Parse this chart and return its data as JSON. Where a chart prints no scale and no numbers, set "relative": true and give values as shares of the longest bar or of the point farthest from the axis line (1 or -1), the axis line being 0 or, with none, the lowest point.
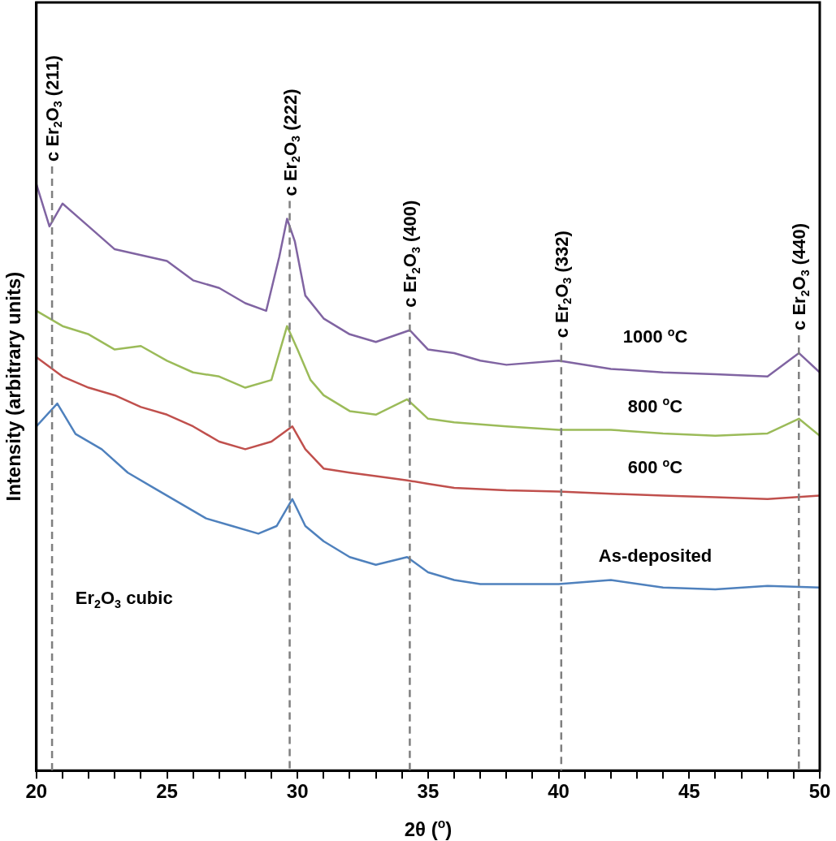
{
  "chart_data": {
    "type": "line",
    "relative": true,
    "marker": "none",
    "xlabel": "2θ ($^{o}$)",
    "ylabel": "Intensity (arbitrary units)",
    "xlim": [
      20,
      50
    ],
    "xticks": [
      20,
      {
        "value": 21,
        "label": null
      },
      {
        "value": 22,
        "label": null
      },
      {
        "value": 23,
        "label": null
      },
      {
        "value": 24,
        "label": null
      },
      25,
      {
        "value": 26,
        "label": null
      },
      {
        "value": 27,
        "label": null
      },
      {
        "value": 28,
        "label": null
      },
      {
        "value": 29,
        "label": null
      },
      30,
      {
        "value": 31,
        "label": null
      },
      {
        "value": 32,
        "label": null
      },
      {
        "value": 33,
        "label": null
      },
      {
        "value": 34,
        "label": null
      },
      35,
      {
        "value": 36,
        "label": null
      },
      {
        "value": 37,
        "label": null
      },
      {
        "value": 38,
        "label": null
      },
      {
        "value": 39,
        "label": null
      },
      40,
      {
        "value": 41,
        "label": null
      },
      {
        "value": 42,
        "label": null
      },
      {
        "value": 43,
        "label": null
      },
      {
        "value": 44,
        "label": null
      },
      45,
      {
        "value": 46,
        "label": null
      },
      {
        "value": 47,
        "label": null
      },
      {
        "value": 48,
        "label": null
      },
      {
        "value": 49,
        "label": null
      },
      50
    ],
    "series": [
      {
        "name": "1000 $^{o}$C",
        "color": "#8064a2",
        "x": [
          20,
          20.5,
          21,
          22,
          23,
          25,
          26,
          27,
          28,
          28.8,
          29.3,
          29.6,
          29.9,
          30.3,
          31,
          32,
          33,
          34.3,
          35,
          36,
          37,
          38,
          40,
          42,
          44,
          46,
          48,
          49.2,
          50
        ],
        "values": [
          1,
          0.928,
          0.967,
          0.928,
          0.889,
          0.869,
          0.836,
          0.823,
          0.797,
          0.784,
          0.876,
          0.941,
          0.902,
          0.81,
          0.771,
          0.744,
          0.731,
          0.751,
          0.718,
          0.712,
          0.699,
          0.692,
          0.699,
          0.685,
          0.679,
          0.676,
          0.672,
          0.712,
          0.679
        ]
      },
      {
        "name": "800 $^{o}$C",
        "color": "#9bbb59",
        "x": [
          20,
          21,
          22,
          23,
          24,
          25,
          26,
          27,
          28,
          29,
          29.6,
          30,
          30.5,
          31,
          32,
          33,
          34.2,
          35,
          36,
          38,
          40,
          42,
          44,
          46,
          48,
          49.2,
          50
        ],
        "values": [
          0.784,
          0.758,
          0.744,
          0.718,
          0.724,
          0.699,
          0.679,
          0.672,
          0.653,
          0.666,
          0.758,
          0.718,
          0.666,
          0.64,
          0.613,
          0.607,
          0.633,
          0.6,
          0.594,
          0.587,
          0.581,
          0.581,
          0.575,
          0.571,
          0.575,
          0.6,
          0.571
        ]
      },
      {
        "name": "600 $^{o}$C",
        "color": "#c0504d",
        "x": [
          20,
          21,
          22,
          23,
          24,
          25,
          26,
          27,
          28,
          29,
          29.8,
          30.3,
          31,
          32,
          33,
          34.2,
          35,
          36,
          38,
          40,
          42,
          44,
          46,
          48,
          50
        ],
        "values": [
          0.705,
          0.672,
          0.653,
          0.64,
          0.62,
          0.607,
          0.587,
          0.561,
          0.548,
          0.561,
          0.587,
          0.548,
          0.515,
          0.508,
          0.502,
          0.495,
          0.489,
          0.482,
          0.478,
          0.476,
          0.472,
          0.469,
          0.466,
          0.463,
          0.469
        ]
      },
      {
        "name": "As-deposited",
        "color": "#4f81bd",
        "x": [
          20,
          20.8,
          21.5,
          22.5,
          23.5,
          24.5,
          25.5,
          26.5,
          27.5,
          28.5,
          29.2,
          29.8,
          30.3,
          31,
          32,
          33,
          34.2,
          35,
          36,
          37,
          38,
          40,
          42,
          44,
          46,
          48,
          50
        ],
        "values": [
          0.587,
          0.626,
          0.574,
          0.548,
          0.508,
          0.482,
          0.456,
          0.43,
          0.417,
          0.404,
          0.417,
          0.463,
          0.417,
          0.391,
          0.364,
          0.351,
          0.364,
          0.338,
          0.325,
          0.318,
          0.318,
          0.318,
          0.325,
          0.312,
          0.309,
          0.315,
          0.312
        ]
      }
    ],
    "ref_lines": [
      {
        "axis": "x",
        "value": 20.6,
        "label": "c Er$_{2}$O$_{3}$ (211)",
        "color": "#7f7f7f",
        "line_style": "dashed"
      },
      {
        "axis": "x",
        "value": 29.7,
        "label": "c Er$_{2}$O$_{3}$ (222)",
        "color": "#7f7f7f",
        "line_style": "dashed"
      },
      {
        "axis": "x",
        "value": 34.3,
        "label": "c Er$_{2}$O$_{3}$ (400)",
        "color": "#7f7f7f",
        "line_style": "dashed"
      },
      {
        "axis": "x",
        "value": 40.1,
        "label": "c Er$_{2}$O$_{3}$ (332)",
        "color": "#7f7f7f",
        "line_style": "dashed"
      },
      {
        "axis": "x",
        "value": 49.2,
        "label": "c Er$_{2}$O$_{3}$ (440)",
        "color": "#7f7f7f",
        "line_style": "dashed"
      }
    ],
    "annotations": [
      "Er$_{2}$O$_{3}$ cubic"
    ]
  }
}
